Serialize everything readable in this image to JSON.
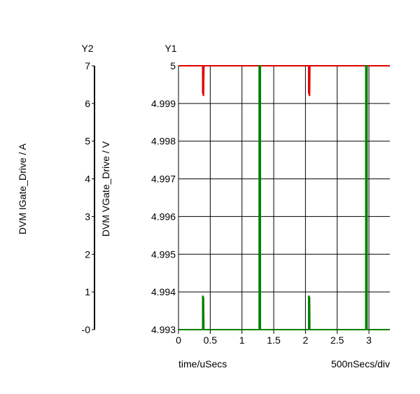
{
  "chart_data": {
    "type": "line",
    "xlabel": "time/uSecs",
    "x_scale_label": "500nSecs/div",
    "xlim": [
      0,
      3.33
    ],
    "xticks": [
      "0",
      "0.5",
      "1",
      "1.5",
      "2",
      "2.5",
      "3"
    ],
    "y1": {
      "title": "Y1",
      "label": "DVM VGate_Drive / V",
      "ylim": [
        4.993,
        5.0
      ],
      "ticks": [
        "4.993",
        "4.994",
        "4.995",
        "4.996",
        "4.997",
        "4.998",
        "4.999",
        "5"
      ]
    },
    "y2": {
      "title": "Y2",
      "label": "DVM IGate_Drive / A",
      "ylim": [
        0,
        7
      ],
      "ticks": [
        "-0",
        "1",
        "2",
        "3",
        "4",
        "5",
        "6",
        "7"
      ]
    },
    "grid": true,
    "series": [
      {
        "color": "#e00000",
        "axis": "y1",
        "points": [
          [
            0,
            5.0
          ],
          [
            0.38,
            5.0
          ],
          [
            0.38,
            4.9993
          ],
          [
            0.395,
            4.9992
          ],
          [
            0.4,
            5.0
          ],
          [
            2.05,
            5.0
          ],
          [
            2.05,
            4.9993
          ],
          [
            2.065,
            4.9992
          ],
          [
            2.07,
            5.0
          ],
          [
            3.33,
            5.0
          ]
        ]
      },
      {
        "color": "#008000",
        "axis": "y2",
        "points": [
          [
            0,
            0
          ],
          [
            0.38,
            0
          ],
          [
            0.38,
            0.9
          ],
          [
            0.395,
            0.85
          ],
          [
            0.4,
            0
          ],
          [
            1.27,
            0
          ],
          [
            1.27,
            7.0
          ],
          [
            1.29,
            7.0
          ],
          [
            1.29,
            0
          ],
          [
            2.05,
            0
          ],
          [
            2.05,
            0.9
          ],
          [
            2.065,
            0.85
          ],
          [
            2.07,
            0
          ],
          [
            2.95,
            0
          ],
          [
            2.95,
            7.0
          ],
          [
            2.97,
            7.0
          ],
          [
            2.97,
            0
          ],
          [
            3.33,
            0
          ]
        ]
      }
    ]
  }
}
